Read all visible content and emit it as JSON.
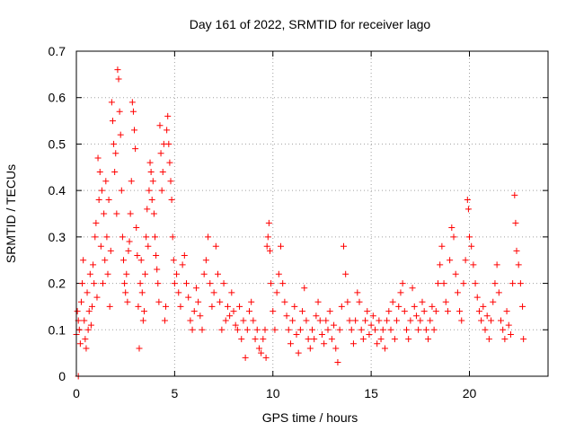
{
  "chart_data": {
    "type": "scatter",
    "title": "Day 161 of 2022, SRMTID for receiver lago",
    "xlabel": "GPS time / hours",
    "ylabel": "SRMTID / TECUs",
    "xlim": [
      0,
      24
    ],
    "ylim": [
      0,
      0.7
    ],
    "xticks": [
      0,
      5,
      10,
      15,
      20
    ],
    "yticks": [
      0,
      0.1,
      0.2,
      0.3,
      0.4,
      0.5,
      0.6,
      0.7
    ],
    "xtick_labels": [
      "0",
      "5",
      "10",
      "15",
      "20"
    ],
    "ytick_labels": [
      "0",
      "0.1",
      "0.2",
      "0.3",
      "0.4",
      "0.5",
      "0.6",
      "0.7"
    ],
    "grid": true,
    "marker": "plus",
    "color": "#ff0000",
    "series": [
      {
        "name": "SRMTID",
        "points": [
          [
            0.0,
            0.09
          ],
          [
            0.05,
            0.14
          ],
          [
            0.1,
            0.0
          ],
          [
            0.1,
            0.12
          ],
          [
            0.15,
            0.1
          ],
          [
            0.2,
            0.07
          ],
          [
            0.25,
            0.16
          ],
          [
            0.3,
            0.2
          ],
          [
            0.35,
            0.25
          ],
          [
            0.4,
            0.12
          ],
          [
            0.45,
            0.08
          ],
          [
            0.5,
            0.06
          ],
          [
            0.55,
            0.18
          ],
          [
            0.6,
            0.1
          ],
          [
            0.65,
            0.14
          ],
          [
            0.7,
            0.22
          ],
          [
            0.75,
            0.11
          ],
          [
            0.8,
            0.15
          ],
          [
            0.85,
            0.24
          ],
          [
            0.9,
            0.2
          ],
          [
            0.95,
            0.3
          ],
          [
            1.0,
            0.33
          ],
          [
            1.05,
            0.17
          ],
          [
            1.1,
            0.47
          ],
          [
            1.15,
            0.38
          ],
          [
            1.2,
            0.44
          ],
          [
            1.25,
            0.28
          ],
          [
            1.3,
            0.4
          ],
          [
            1.35,
            0.2
          ],
          [
            1.4,
            0.35
          ],
          [
            1.45,
            0.25
          ],
          [
            1.5,
            0.42
          ],
          [
            1.55,
            0.3
          ],
          [
            1.6,
            0.22
          ],
          [
            1.65,
            0.38
          ],
          [
            1.7,
            0.15
          ],
          [
            1.75,
            0.27
          ],
          [
            1.8,
            0.59
          ],
          [
            1.85,
            0.55
          ],
          [
            1.9,
            0.5
          ],
          [
            1.95,
            0.44
          ],
          [
            2.0,
            0.48
          ],
          [
            2.05,
            0.35
          ],
          [
            2.1,
            0.66
          ],
          [
            2.15,
            0.64
          ],
          [
            2.2,
            0.57
          ],
          [
            2.25,
            0.52
          ],
          [
            2.3,
            0.4
          ],
          [
            2.35,
            0.3
          ],
          [
            2.4,
            0.25
          ],
          [
            2.45,
            0.2
          ],
          [
            2.5,
            0.18
          ],
          [
            2.55,
            0.22
          ],
          [
            2.6,
            0.16
          ],
          [
            2.65,
            0.27
          ],
          [
            2.7,
            0.29
          ],
          [
            2.75,
            0.35
          ],
          [
            2.8,
            0.42
          ],
          [
            2.85,
            0.59
          ],
          [
            2.9,
            0.57
          ],
          [
            2.95,
            0.53
          ],
          [
            3.0,
            0.49
          ],
          [
            3.05,
            0.32
          ],
          [
            3.1,
            0.26
          ],
          [
            3.15,
            0.15
          ],
          [
            3.2,
            0.06
          ],
          [
            3.25,
            0.2
          ],
          [
            3.3,
            0.25
          ],
          [
            3.35,
            0.18
          ],
          [
            3.4,
            0.12
          ],
          [
            3.45,
            0.14
          ],
          [
            3.5,
            0.22
          ],
          [
            3.55,
            0.3
          ],
          [
            3.6,
            0.36
          ],
          [
            3.65,
            0.28
          ],
          [
            3.7,
            0.4
          ],
          [
            3.75,
            0.46
          ],
          [
            3.8,
            0.44
          ],
          [
            3.85,
            0.38
          ],
          [
            3.9,
            0.42
          ],
          [
            3.95,
            0.35
          ],
          [
            4.0,
            0.3
          ],
          [
            4.05,
            0.26
          ],
          [
            4.1,
            0.23
          ],
          [
            4.15,
            0.2
          ],
          [
            4.2,
            0.16
          ],
          [
            4.25,
            0.54
          ],
          [
            4.3,
            0.48
          ],
          [
            4.35,
            0.4
          ],
          [
            4.4,
            0.44
          ],
          [
            4.45,
            0.5
          ],
          [
            4.5,
            0.12
          ],
          [
            4.55,
            0.15
          ],
          [
            4.6,
            0.53
          ],
          [
            4.65,
            0.56
          ],
          [
            4.7,
            0.5
          ],
          [
            4.75,
            0.46
          ],
          [
            4.8,
            0.42
          ],
          [
            4.85,
            0.38
          ],
          [
            4.9,
            0.3
          ],
          [
            4.95,
            0.25
          ],
          [
            5.0,
            0.2
          ],
          [
            5.1,
            0.22
          ],
          [
            5.2,
            0.18
          ],
          [
            5.3,
            0.15
          ],
          [
            5.4,
            0.24
          ],
          [
            5.5,
            0.26
          ],
          [
            5.6,
            0.2
          ],
          [
            5.7,
            0.17
          ],
          [
            5.8,
            0.12
          ],
          [
            5.9,
            0.1
          ],
          [
            6.0,
            0.14
          ],
          [
            6.1,
            0.19
          ],
          [
            6.2,
            0.16
          ],
          [
            6.3,
            0.13
          ],
          [
            6.4,
            0.1
          ],
          [
            6.5,
            0.22
          ],
          [
            6.6,
            0.25
          ],
          [
            6.7,
            0.3
          ],
          [
            6.8,
            0.2
          ],
          [
            6.9,
            0.15
          ],
          [
            7.0,
            0.18
          ],
          [
            7.1,
            0.28
          ],
          [
            7.2,
            0.22
          ],
          [
            7.3,
            0.16
          ],
          [
            7.4,
            0.1
          ],
          [
            7.5,
            0.2
          ],
          [
            7.6,
            0.12
          ],
          [
            7.7,
            0.15
          ],
          [
            7.8,
            0.13
          ],
          [
            7.9,
            0.18
          ],
          [
            8.0,
            0.14
          ],
          [
            8.1,
            0.11
          ],
          [
            8.2,
            0.1
          ],
          [
            8.3,
            0.15
          ],
          [
            8.4,
            0.08
          ],
          [
            8.5,
            0.12
          ],
          [
            8.6,
            0.04
          ],
          [
            8.7,
            0.1
          ],
          [
            8.8,
            0.14
          ],
          [
            8.9,
            0.16
          ],
          [
            9.0,
            0.12
          ],
          [
            9.1,
            0.08
          ],
          [
            9.2,
            0.1
          ],
          [
            9.3,
            0.06
          ],
          [
            9.4,
            0.05
          ],
          [
            9.5,
            0.08
          ],
          [
            9.6,
            0.1
          ],
          [
            9.65,
            0.04
          ],
          [
            9.7,
            0.28
          ],
          [
            9.75,
            0.3
          ],
          [
            9.8,
            0.33
          ],
          [
            9.85,
            0.27
          ],
          [
            9.9,
            0.2
          ],
          [
            10.0,
            0.14
          ],
          [
            10.1,
            0.1
          ],
          [
            10.2,
            0.18
          ],
          [
            10.3,
            0.22
          ],
          [
            10.4,
            0.28
          ],
          [
            10.5,
            0.2
          ],
          [
            10.6,
            0.16
          ],
          [
            10.7,
            0.13
          ],
          [
            10.8,
            0.1
          ],
          [
            10.9,
            0.07
          ],
          [
            11.0,
            0.12
          ],
          [
            11.1,
            0.15
          ],
          [
            11.2,
            0.09
          ],
          [
            11.3,
            0.05
          ],
          [
            11.4,
            0.1
          ],
          [
            11.5,
            0.14
          ],
          [
            11.6,
            0.19
          ],
          [
            11.7,
            0.12
          ],
          [
            11.8,
            0.08
          ],
          [
            11.9,
            0.06
          ],
          [
            12.0,
            0.1
          ],
          [
            12.1,
            0.08
          ],
          [
            12.2,
            0.13
          ],
          [
            12.3,
            0.16
          ],
          [
            12.4,
            0.12
          ],
          [
            12.5,
            0.09
          ],
          [
            12.6,
            0.07
          ],
          [
            12.7,
            0.12
          ],
          [
            12.8,
            0.1
          ],
          [
            12.9,
            0.14
          ],
          [
            13.0,
            0.08
          ],
          [
            13.1,
            0.11
          ],
          [
            13.2,
            0.06
          ],
          [
            13.3,
            0.03
          ],
          [
            13.4,
            0.1
          ],
          [
            13.5,
            0.15
          ],
          [
            13.6,
            0.28
          ],
          [
            13.7,
            0.22
          ],
          [
            13.8,
            0.16
          ],
          [
            13.9,
            0.12
          ],
          [
            14.0,
            0.1
          ],
          [
            14.1,
            0.07
          ],
          [
            14.2,
            0.12
          ],
          [
            14.3,
            0.18
          ],
          [
            14.4,
            0.16
          ],
          [
            14.5,
            0.1
          ],
          [
            14.6,
            0.08
          ],
          [
            14.7,
            0.12
          ],
          [
            14.8,
            0.14
          ],
          [
            14.9,
            0.09
          ],
          [
            15.0,
            0.11
          ],
          [
            15.1,
            0.13
          ],
          [
            15.2,
            0.1
          ],
          [
            15.3,
            0.07
          ],
          [
            15.4,
            0.12
          ],
          [
            15.5,
            0.08
          ],
          [
            15.6,
            0.1
          ],
          [
            15.7,
            0.06
          ],
          [
            15.8,
            0.12
          ],
          [
            15.9,
            0.14
          ],
          [
            16.0,
            0.1
          ],
          [
            16.1,
            0.16
          ],
          [
            16.2,
            0.08
          ],
          [
            16.3,
            0.12
          ],
          [
            16.4,
            0.15
          ],
          [
            16.5,
            0.18
          ],
          [
            16.6,
            0.2
          ],
          [
            16.7,
            0.14
          ],
          [
            16.8,
            0.1
          ],
          [
            16.9,
            0.08
          ],
          [
            17.0,
            0.12
          ],
          [
            17.1,
            0.19
          ],
          [
            17.2,
            0.15
          ],
          [
            17.3,
            0.13
          ],
          [
            17.4,
            0.1
          ],
          [
            17.5,
            0.12
          ],
          [
            17.6,
            0.16
          ],
          [
            17.7,
            0.14
          ],
          [
            17.8,
            0.1
          ],
          [
            17.9,
            0.08
          ],
          [
            18.0,
            0.12
          ],
          [
            18.1,
            0.15
          ],
          [
            18.2,
            0.1
          ],
          [
            18.3,
            0.14
          ],
          [
            18.4,
            0.2
          ],
          [
            18.5,
            0.24
          ],
          [
            18.6,
            0.28
          ],
          [
            18.7,
            0.2
          ],
          [
            18.8,
            0.16
          ],
          [
            18.9,
            0.14
          ],
          [
            19.0,
            0.25
          ],
          [
            19.1,
            0.32
          ],
          [
            19.2,
            0.3
          ],
          [
            19.3,
            0.22
          ],
          [
            19.4,
            0.18
          ],
          [
            19.5,
            0.14
          ],
          [
            19.6,
            0.12
          ],
          [
            19.7,
            0.2
          ],
          [
            19.8,
            0.25
          ],
          [
            19.9,
            0.38
          ],
          [
            19.95,
            0.36
          ],
          [
            20.0,
            0.3
          ],
          [
            20.1,
            0.28
          ],
          [
            20.2,
            0.24
          ],
          [
            20.3,
            0.2
          ],
          [
            20.4,
            0.17
          ],
          [
            20.5,
            0.14
          ],
          [
            20.6,
            0.12
          ],
          [
            20.7,
            0.15
          ],
          [
            20.8,
            0.1
          ],
          [
            20.9,
            0.13
          ],
          [
            21.0,
            0.08
          ],
          [
            21.1,
            0.12
          ],
          [
            21.2,
            0.16
          ],
          [
            21.3,
            0.2
          ],
          [
            21.4,
            0.24
          ],
          [
            21.5,
            0.18
          ],
          [
            21.6,
            0.12
          ],
          [
            21.7,
            0.1
          ],
          [
            21.8,
            0.08
          ],
          [
            21.9,
            0.14
          ],
          [
            22.0,
            0.11
          ],
          [
            22.1,
            0.09
          ],
          [
            22.2,
            0.2
          ],
          [
            22.3,
            0.39
          ],
          [
            22.35,
            0.33
          ],
          [
            22.4,
            0.27
          ],
          [
            22.5,
            0.24
          ],
          [
            22.6,
            0.2
          ],
          [
            22.7,
            0.15
          ],
          [
            22.75,
            0.08
          ]
        ]
      }
    ]
  }
}
